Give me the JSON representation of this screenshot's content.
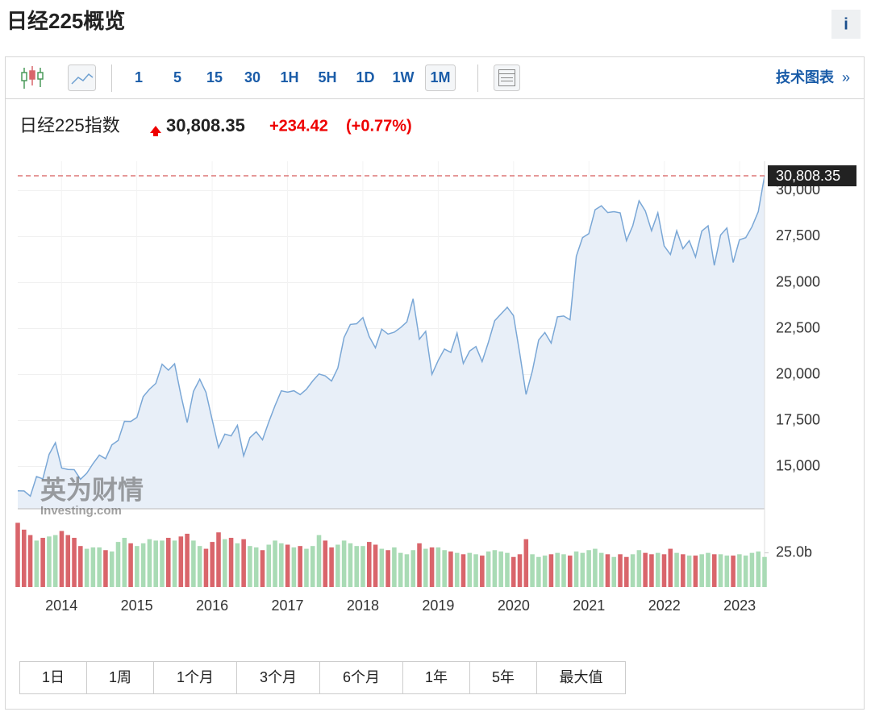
{
  "header": {
    "title": "日经225概览",
    "info": "i"
  },
  "toolbar": {
    "intervals": [
      "1",
      "5",
      "15",
      "30",
      "1H",
      "5H",
      "1D",
      "1W",
      "1M"
    ],
    "selected": "1M",
    "link": "技术图表",
    "link_arrow": "»"
  },
  "quote": {
    "name": "日经225指数",
    "price": "30,808.35",
    "change": "+234.42",
    "change_pct": "(+0.77%)"
  },
  "watermark": {
    "brand": "英为财情",
    "site": "Investing.com"
  },
  "chart_data": {
    "type": "line",
    "xlim": [
      2013.42,
      2023.33
    ],
    "xticks": [
      2014,
      2015,
      2016,
      2017,
      2018,
      2019,
      2020,
      2021,
      2022,
      2023
    ],
    "ylim": [
      12700,
      31600
    ],
    "yticks": [
      {
        "value": 15000,
        "label": "15,000"
      },
      {
        "value": 17500,
        "label": "17,500"
      },
      {
        "value": 20000,
        "label": "20,000"
      },
      {
        "value": 22500,
        "label": "22,500"
      },
      {
        "value": 25000,
        "label": "25,000"
      },
      {
        "value": 27500,
        "label": "27,500"
      },
      {
        "value": 30000,
        "label": "30,000"
      }
    ],
    "grid": true,
    "color": "#7aa7d6",
    "fill": "#e8eff8",
    "values": [
      13677,
      13668,
      13389,
      14456,
      14328,
      15662,
      16291,
      14915,
      14841,
      14828,
      14304,
      14632,
      15162,
      15621,
      15425,
      16174,
      16414,
      17460,
      17451,
      17674,
      18798,
      19207,
      19520,
      20563,
      20236,
      20585,
      18890,
      17388,
      19083,
      19747,
      19034,
      17518,
      16027,
      16759,
      16666,
      17235,
      15576,
      16569,
      16887,
      16450,
      17425,
      18308,
      19114,
      19041,
      19119,
      18909,
      19197,
      19651,
      20033,
      19925,
      19646,
      20356,
      22012,
      22725,
      22765,
      23098,
      22068,
      21454,
      22468,
      22202,
      22305,
      22554,
      22865,
      24120,
      21920,
      22351,
      20015,
      20773,
      21385,
      21206,
      22259,
      20601,
      21276,
      21522,
      20704,
      21756,
      22927,
      23294,
      23657,
      23205,
      21143,
      18917,
      20194,
      21878,
      22288,
      21710,
      23140,
      23185,
      22977,
      26434,
      27444,
      27663,
      28966,
      29179,
      28813,
      28860,
      28792,
      27284,
      28090,
      29453,
      28893,
      27822,
      28792,
      27002,
      26527,
      27821,
      26848,
      27280,
      26393,
      27802,
      28092,
      25937,
      27587,
      27969,
      26095,
      27327,
      27446,
      28041,
      28856,
      30808.35
    ],
    "volume": {
      "ylim": [
        0,
        49
      ],
      "yticks": [
        {
          "value": 25,
          "label": "25.0b"
        }
      ],
      "up_color": "#a9dbb5",
      "down_color": "#d9656b",
      "values": [
        47,
        42,
        38,
        34,
        36,
        37,
        38,
        41,
        38,
        36,
        30,
        28,
        29,
        29,
        27,
        26,
        33,
        36,
        32,
        30,
        32,
        35,
        34,
        34,
        36,
        34,
        37,
        39,
        34,
        30,
        28,
        33,
        40,
        35,
        36,
        32,
        35,
        30,
        29,
        27,
        31,
        34,
        32,
        31,
        29,
        30,
        28,
        30,
        38,
        34,
        29,
        31,
        34,
        32,
        30,
        30,
        33,
        31,
        28,
        27,
        29,
        25,
        24,
        27,
        32,
        28,
        29,
        29,
        27,
        26,
        25,
        24,
        25,
        24,
        23,
        26,
        27,
        26,
        25,
        22,
        24,
        35,
        24,
        22,
        23,
        24,
        25,
        24,
        23,
        26,
        25,
        27,
        28,
        25,
        24,
        22,
        24,
        22,
        24,
        27,
        25,
        24,
        25,
        24,
        28,
        25,
        24,
        23,
        23,
        24,
        25,
        24,
        24,
        23,
        23,
        24,
        23,
        25,
        26,
        22
      ]
    }
  },
  "ranges": [
    "1日",
    "1周",
    "1个月",
    "3个月",
    "6个月",
    "1年",
    "5年",
    "最大值"
  ]
}
